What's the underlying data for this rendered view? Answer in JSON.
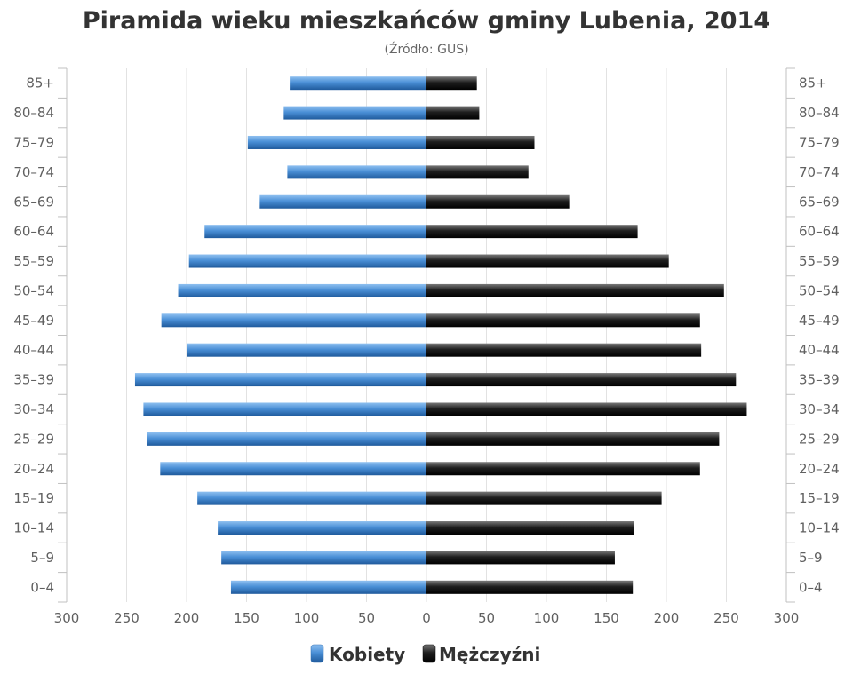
{
  "chart_data": {
    "type": "bar",
    "orientation": "horizontal",
    "title": "Piramida wieku mieszkańców gminy Lubenia, 2014",
    "subtitle": "(Źródło: GUS)",
    "categories": [
      "85+",
      "80-84",
      "75-79",
      "70-74",
      "65-69",
      "60-64",
      "55-59",
      "50-54",
      "45-49",
      "40-44",
      "35-39",
      "30-34",
      "25-29",
      "20-24",
      "15-19",
      "10-14",
      "5-9",
      "0-4"
    ],
    "category_labels": [
      "85+",
      "80–84",
      "75–79",
      "70–74",
      "65–69",
      "60–64",
      "55–59",
      "50–54",
      "45–49",
      "40–44",
      "35–39",
      "30–34",
      "25–29",
      "20–24",
      "15–19",
      "10–14",
      "5–9",
      "0–4"
    ],
    "series": [
      {
        "name": "Kobiety",
        "side": "left",
        "color": "#4a8fd6",
        "values": [
          114,
          119,
          149,
          116,
          139,
          185,
          198,
          207,
          221,
          200,
          243,
          236,
          233,
          222,
          191,
          174,
          171,
          163
        ]
      },
      {
        "name": "Mężczyźni",
        "side": "right",
        "color": "#1e1e1e",
        "values": [
          42,
          44,
          90,
          85,
          119,
          176,
          202,
          248,
          228,
          229,
          258,
          267,
          244,
          228,
          196,
          173,
          157,
          172
        ]
      }
    ],
    "xaxis": {
      "ticks": [
        300,
        250,
        200,
        150,
        100,
        50,
        0,
        50,
        100,
        150,
        200,
        250,
        300
      ],
      "range": [
        -300,
        300
      ]
    },
    "grid": true,
    "legend_position": "bottom-center"
  }
}
